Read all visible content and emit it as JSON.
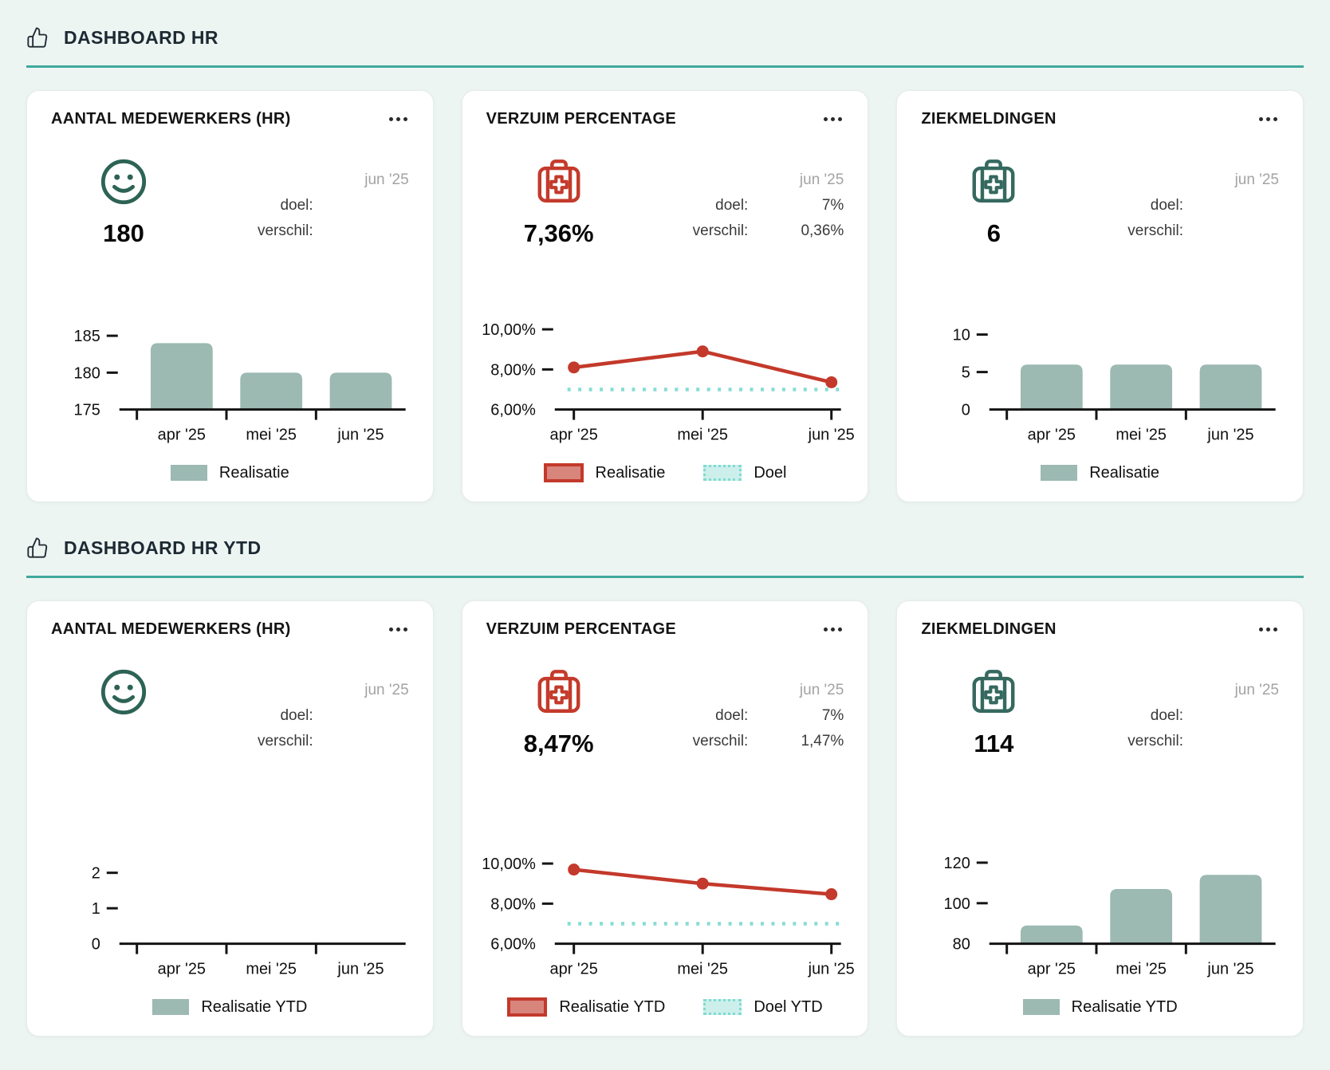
{
  "page": {
    "background": "#edf5f3",
    "accent": "#3fa99c"
  },
  "colors": {
    "accent_rule": "#3fa99c",
    "bar_fill": "#9cb9b2",
    "realisatie_red": "#c3392b",
    "realisatie_red_fill": "#d8857c",
    "doel_teal": "#85ddd3",
    "doel_teal_fill": "#cdefeb",
    "icon_smiley_teal": "#2d6355",
    "icon_kit_teal": "#35695f",
    "icon_kit_red": "#c43a2b",
    "axis": "#141414",
    "period_gray": "#a3a3a3"
  },
  "sections": [
    {
      "title": "DASHBOARD HR",
      "icon": "thumbs-up-icon",
      "cards": [
        {
          "title": "AANTAL MEDEWERKERS (HR)",
          "menu_icon": "ellipsis-icon",
          "icon": "smiley-icon",
          "value": "180",
          "period": "jun '25",
          "doel_label": "doel:",
          "doel_value": "",
          "verschil_label": "verschil:",
          "verschil_value": "",
          "chart": 0
        },
        {
          "title": "VERZUIM PERCENTAGE",
          "menu_icon": "ellipsis-icon",
          "icon": "first-aid-kit-icon",
          "value": "7,36%",
          "period": "jun '25",
          "doel_label": "doel:",
          "doel_value": "7%",
          "verschil_label": "verschil:",
          "verschil_value": "0,36%",
          "chart": 1
        },
        {
          "title": "ZIEKMELDINGEN",
          "menu_icon": "ellipsis-icon",
          "icon": "first-aid-kit-icon",
          "value": "6",
          "period": "jun '25",
          "doel_label": "doel:",
          "doel_value": "",
          "verschil_label": "verschil:",
          "verschil_value": "",
          "chart": 2
        }
      ]
    },
    {
      "title": "DASHBOARD HR YTD",
      "icon": "thumbs-up-icon",
      "cards": [
        {
          "title": "AANTAL MEDEWERKERS (HR)",
          "menu_icon": "ellipsis-icon",
          "icon": "smiley-icon",
          "value": "",
          "period": "jun '25",
          "doel_label": "doel:",
          "doel_value": "",
          "verschil_label": "verschil:",
          "verschil_value": "",
          "chart": 3
        },
        {
          "title": "VERZUIM PERCENTAGE",
          "menu_icon": "ellipsis-icon",
          "icon": "first-aid-kit-icon",
          "value": "8,47%",
          "period": "jun '25",
          "doel_label": "doel:",
          "doel_value": "7%",
          "verschil_label": "verschil:",
          "verschil_value": "1,47%",
          "chart": 4
        },
        {
          "title": "ZIEKMELDINGEN",
          "menu_icon": "ellipsis-icon",
          "icon": "first-aid-kit-icon",
          "value": "114",
          "period": "jun '25",
          "doel_label": "doel:",
          "doel_value": "",
          "verschil_label": "verschil:",
          "verschil_value": "",
          "chart": 5
        }
      ]
    }
  ],
  "chart_data": [
    {
      "type": "bar",
      "title": "AANTAL MEDEWERKERS (HR)",
      "categories": [
        "apr '25",
        "mei '25",
        "jun '25"
      ],
      "values": [
        184,
        180,
        180
      ],
      "ytick_values": [
        175,
        180,
        185
      ],
      "ytick_labels": [
        "175",
        "180",
        "185"
      ],
      "ylim": [
        175,
        187.5
      ],
      "bar_color": "#9cb9b2",
      "legend": [
        {
          "label": "Realisatie",
          "swatch": "realisatie-bar"
        }
      ]
    },
    {
      "type": "line",
      "title": "VERZUIM PERCENTAGE",
      "categories": [
        "apr '25",
        "mei '25",
        "jun '25"
      ],
      "values": [
        8.1,
        8.9,
        7.36
      ],
      "goal": 7,
      "ytick_values": [
        6,
        8,
        10
      ],
      "ytick_labels": [
        "6,00%",
        "8,00%",
        "10,00%"
      ],
      "ylim": [
        6,
        10.6
      ],
      "line_color": "#c3392b",
      "goal_color": "#85ddd3",
      "legend": [
        {
          "label": "Realisatie",
          "swatch": "realisatie-line"
        },
        {
          "label": "Doel",
          "swatch": "doel-dotted"
        }
      ]
    },
    {
      "type": "bar",
      "title": "ZIEKMELDINGEN",
      "categories": [
        "apr '25",
        "mei '25",
        "jun '25"
      ],
      "values": [
        6,
        6,
        6
      ],
      "ytick_values": [
        0,
        5,
        10
      ],
      "ytick_labels": [
        "0",
        "5",
        "10"
      ],
      "ylim": [
        0,
        12.3
      ],
      "bar_color": "#9cb9b2",
      "legend": [
        {
          "label": "Realisatie",
          "swatch": "realisatie-bar"
        }
      ]
    },
    {
      "type": "bar",
      "title": "AANTAL MEDEWERKERS (HR)",
      "categories": [
        "apr '25",
        "mei '25",
        "jun '25"
      ],
      "values": [
        0,
        0,
        0
      ],
      "ytick_values": [
        0,
        1,
        2
      ],
      "ytick_labels": [
        "0",
        "1",
        "2"
      ],
      "ylim": [
        0,
        2.6
      ],
      "bar_color": "#9cb9b2",
      "legend": [
        {
          "label": "Realisatie YTD",
          "swatch": "realisatie-bar"
        }
      ]
    },
    {
      "type": "line",
      "title": "VERZUIM PERCENTAGE",
      "categories": [
        "apr '25",
        "mei '25",
        "jun '25"
      ],
      "values": [
        9.7,
        9.0,
        8.47
      ],
      "goal": 7,
      "ytick_values": [
        6,
        8,
        10
      ],
      "ytick_labels": [
        "6,00%",
        "8,00%",
        "10,00%"
      ],
      "ylim": [
        6,
        10.6
      ],
      "line_color": "#c3392b",
      "goal_color": "#85ddd3",
      "legend": [
        {
          "label": "Realisatie YTD",
          "swatch": "realisatie-line"
        },
        {
          "label": "Doel YTD",
          "swatch": "doel-dotted"
        }
      ]
    },
    {
      "type": "bar",
      "title": "ZIEKMELDINGEN",
      "categories": [
        "apr '25",
        "mei '25",
        "jun '25"
      ],
      "values": [
        89,
        107,
        114
      ],
      "ytick_values": [
        80,
        100,
        120
      ],
      "ytick_labels": [
        "80",
        "100",
        "120"
      ],
      "ylim": [
        80,
        125.5
      ],
      "bar_color": "#9cb9b2",
      "legend": [
        {
          "label": "Realisatie YTD",
          "swatch": "realisatie-bar"
        }
      ]
    }
  ]
}
